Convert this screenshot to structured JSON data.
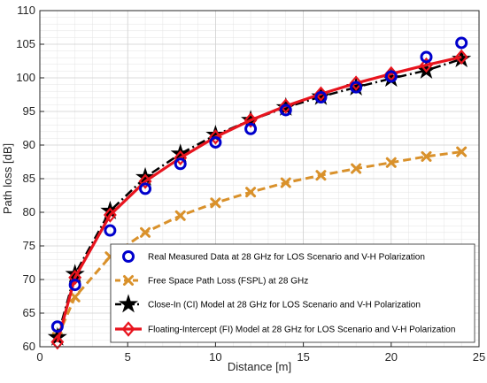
{
  "chart_data": {
    "type": "line",
    "title": "",
    "xlabel": "Distance [m]",
    "ylabel": "Path loss [dB]",
    "xlim": [
      0,
      25
    ],
    "ylim": [
      60,
      110
    ],
    "xticks": [
      0,
      5,
      10,
      15,
      20,
      25
    ],
    "yticks": [
      60,
      65,
      70,
      75,
      80,
      85,
      90,
      95,
      100,
      105,
      110
    ],
    "grid": true,
    "legend_placement": "bottom-right",
    "series": [
      {
        "name": "Real Measured Data at 28 GHz for LOS Scenario and V-H Polarization",
        "style": "markers-circle",
        "color": "#0000cc",
        "x": [
          1,
          2,
          4,
          6,
          8,
          10,
          12,
          14,
          16,
          18,
          20,
          22,
          24
        ],
        "y": [
          63.0,
          69.2,
          77.3,
          83.5,
          87.2,
          90.4,
          92.4,
          95.2,
          97.1,
          98.6,
          100.2,
          103.1,
          105.2
        ]
      },
      {
        "name": "Free Space Path Loss (FSPL) at 28 GHz",
        "style": "dashed-x",
        "color": "#d9912b",
        "x": [
          1,
          2,
          4,
          6,
          8,
          10,
          12,
          14,
          16,
          18,
          20,
          22,
          24
        ],
        "y": [
          61.4,
          67.4,
          73.4,
          77.0,
          79.5,
          81.4,
          83.0,
          84.4,
          85.5,
          86.5,
          87.4,
          88.3,
          89.0
        ]
      },
      {
        "name": "Close-In (CI) Model at 28 GHz for LOS Scenario and V-H Polarization",
        "style": "dashdot-star",
        "color": "#000000",
        "x": [
          1,
          2,
          4,
          6,
          8,
          10,
          12,
          14,
          16,
          18,
          20,
          22,
          24
        ],
        "y": [
          61.4,
          70.8,
          80.2,
          85.2,
          88.7,
          91.5,
          93.7,
          95.6,
          97.2,
          98.6,
          99.9,
          101.1,
          102.8
        ]
      },
      {
        "name": "Floating-Intercept (FI) Model at 28 GHz for LOS Scenario and V-H Polarization",
        "style": "solid-diamond",
        "color": "#e8141e",
        "x": [
          1,
          2,
          4,
          6,
          8,
          10,
          12,
          14,
          16,
          18,
          20,
          22,
          24
        ],
        "y": [
          60.7,
          70.3,
          79.6,
          84.6,
          88.1,
          91.2,
          93.7,
          95.8,
          97.6,
          99.2,
          100.6,
          101.9,
          103.1
        ]
      }
    ]
  }
}
